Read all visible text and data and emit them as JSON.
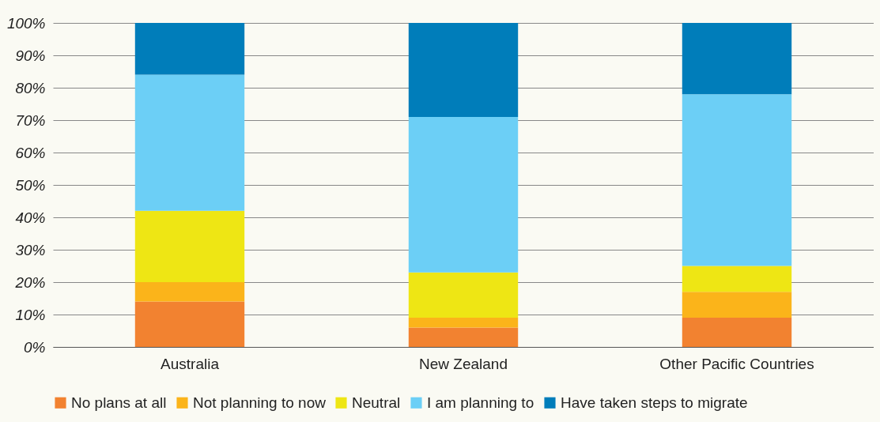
{
  "chart_data": {
    "type": "bar",
    "stacked": true,
    "categories": [
      "Australia",
      "New Zealand",
      "Other Pacific Countries"
    ],
    "series": [
      {
        "name": "No plans at all",
        "color": "#f28230",
        "values": [
          14,
          6,
          9
        ]
      },
      {
        "name": "Not planning to now",
        "color": "#fbb41a",
        "values": [
          6,
          3,
          8
        ]
      },
      {
        "name": "Neutral",
        "color": "#eee614",
        "values": [
          22,
          14,
          8
        ]
      },
      {
        "name": "I am planning to",
        "color": "#6ccff6",
        "values": [
          42,
          48,
          53
        ]
      },
      {
        "name": "Have taken steps to migrate",
        "color": "#007dba",
        "values": [
          16,
          29,
          22
        ]
      }
    ],
    "ylim": [
      0,
      100
    ],
    "yticks": [
      {
        "value": 0,
        "label": "0%"
      },
      {
        "value": 10,
        "label": "10%"
      },
      {
        "value": 20,
        "label": "20%"
      },
      {
        "value": 30,
        "label": "30%"
      },
      {
        "value": 40,
        "label": "40%"
      },
      {
        "value": 50,
        "label": "50%"
      },
      {
        "value": 60,
        "label": "60%"
      },
      {
        "value": 70,
        "label": "70%"
      },
      {
        "value": 80,
        "label": "80%"
      },
      {
        "value": 90,
        "label": "90%"
      },
      {
        "value": 100,
        "label": "100%"
      }
    ],
    "grid": "y",
    "legend": "bottom"
  }
}
